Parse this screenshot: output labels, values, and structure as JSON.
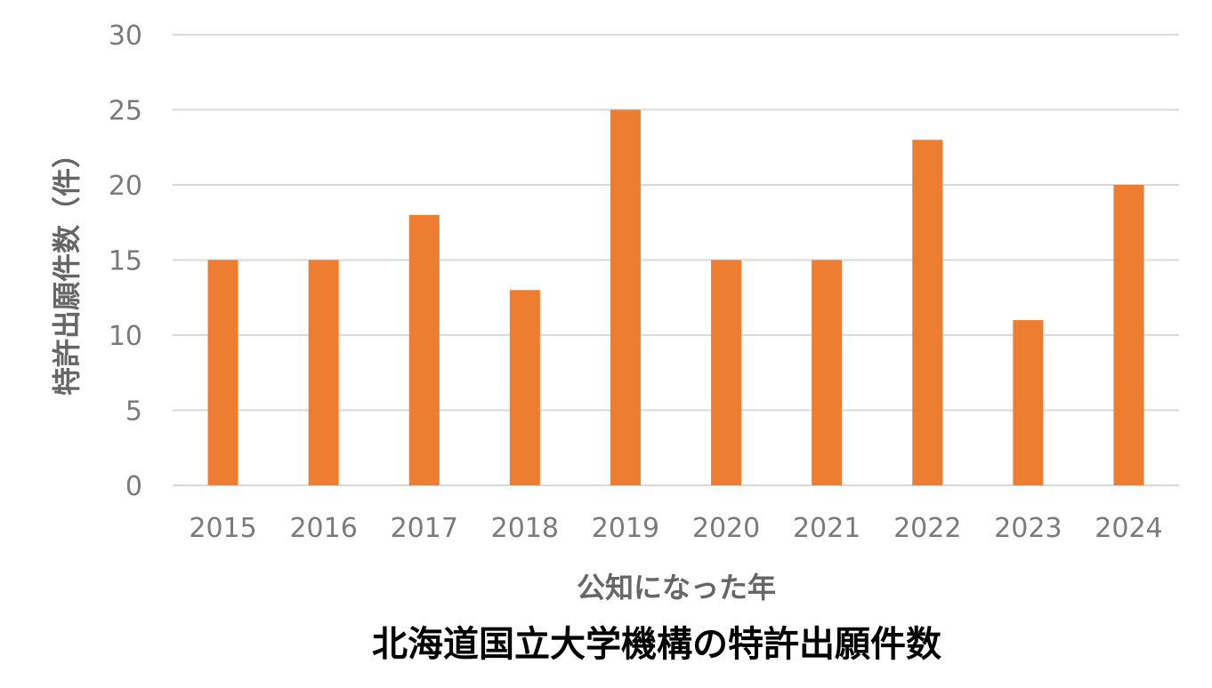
{
  "chart_data": {
    "type": "bar",
    "title": "北海道国立大学機構の特許出願件数",
    "xlabel": "公知になった年",
    "ylabel": "特許出願件数（件）",
    "categories": [
      "2015",
      "2016",
      "2017",
      "2018",
      "2019",
      "2020",
      "2021",
      "2022",
      "2023",
      "2024"
    ],
    "values": [
      15,
      15,
      18,
      13,
      25,
      15,
      15,
      23,
      11,
      20
    ],
    "ylim": [
      0,
      30
    ],
    "yticks": [
      0,
      5,
      10,
      15,
      20,
      25,
      30
    ],
    "grid": true,
    "legend": "none",
    "colors": {
      "bar": "#ed7d31",
      "grid": "#d9d9d9",
      "tick_text": "#7a7a7a",
      "axis_title": "#666666",
      "title": "#000000"
    }
  }
}
